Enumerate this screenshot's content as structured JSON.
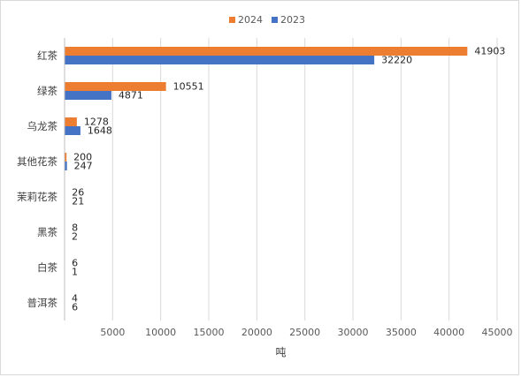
{
  "chart_data": {
    "type": "bar",
    "orientation": "horizontal",
    "categories": [
      "红茶",
      "绿茶",
      "乌龙茶",
      "其他花茶",
      "茉莉花茶",
      "黑茶",
      "白茶",
      "普洱茶"
    ],
    "series": [
      {
        "name": "2024",
        "color": "#ED7D31",
        "values": [
          41903,
          10551,
          1278,
          200,
          26,
          8,
          6,
          4
        ]
      },
      {
        "name": "2023",
        "color": "#4472C4",
        "values": [
          32220,
          4871,
          1648,
          247,
          21,
          2,
          1,
          6
        ]
      }
    ],
    "xlabel": "吨",
    "xlim": [
      0,
      45000
    ],
    "xticks": [
      5000,
      10000,
      15000,
      20000,
      25000,
      30000,
      35000,
      40000,
      45000
    ],
    "grid": true,
    "legend_position": "top"
  }
}
